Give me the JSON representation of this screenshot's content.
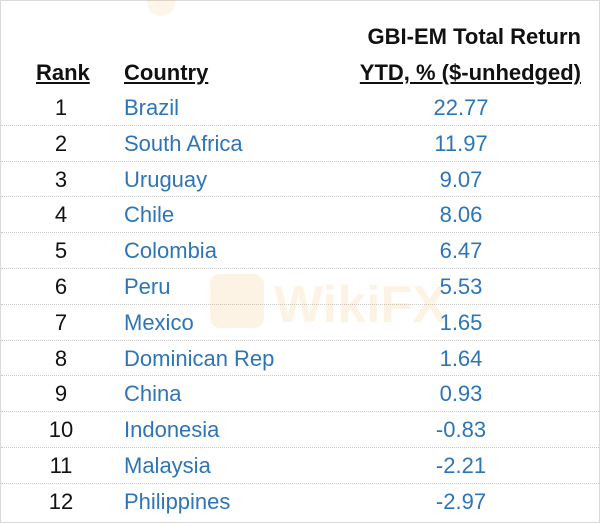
{
  "table": {
    "headers": {
      "rank": "Rank",
      "country": "Country",
      "value_line1": "GBI-EM Total Return",
      "value_line2": "YTD, % ($-unhedged)"
    },
    "watermark": "WikiFX"
  },
  "chart_data": {
    "type": "table",
    "columns": [
      "Rank",
      "Country",
      "GBI-EM Total Return YTD, % ($-unhedged)"
    ],
    "rows": [
      {
        "rank": "1",
        "country": "Brazil",
        "value": "22.77"
      },
      {
        "rank": "2",
        "country": "South Africa",
        "value": "11.97"
      },
      {
        "rank": "3",
        "country": "Uruguay",
        "value": "9.07"
      },
      {
        "rank": "4",
        "country": "Chile",
        "value": "8.06"
      },
      {
        "rank": "5",
        "country": "Colombia",
        "value": "6.47"
      },
      {
        "rank": "6",
        "country": "Peru",
        "value": "5.53"
      },
      {
        "rank": "7",
        "country": "Mexico",
        "value": "1.65"
      },
      {
        "rank": "8",
        "country": "Dominican Rep",
        "value": "1.64"
      },
      {
        "rank": "9",
        "country": "China",
        "value": "0.93"
      },
      {
        "rank": "10",
        "country": "Indonesia",
        "value": "-0.83"
      },
      {
        "rank": "11",
        "country": "Malaysia",
        "value": "-2.21"
      },
      {
        "rank": "12",
        "country": "Philippines",
        "value": "-2.97"
      }
    ]
  },
  "colors": {
    "link_blue": "#2e75b6",
    "text_dark": "#111111",
    "watermark": "#f0a53a"
  },
  "icons": {
    "watermark_logo": "wikifx-logo-icon"
  }
}
